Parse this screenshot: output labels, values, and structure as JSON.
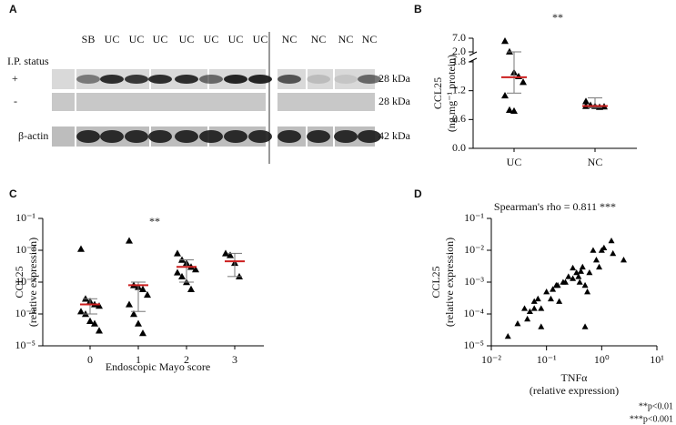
{
  "blot": {
    "panel": "A",
    "lanes": [
      "SB",
      "UC",
      "UC",
      "UC",
      "UC",
      "UC",
      "UC",
      "UC",
      "NC",
      "NC",
      "NC",
      "NC"
    ],
    "row_title": "I.P. status",
    "rows": [
      "+",
      "-",
      "β-actin"
    ],
    "sizes": [
      "28 kDa",
      "28 kDa",
      "42 kDa"
    ]
  },
  "chart_data": [
    {
      "type": "dot",
      "panel": "B",
      "title": "**",
      "y_label": [
        "CCL25",
        "(ng mg⁻¹ protein)"
      ],
      "categories": [
        "UC",
        "NC"
      ],
      "points": [
        [
          6.0,
          2.1,
          1.58,
          1.5,
          1.38,
          1.1,
          0.8,
          0.78
        ],
        [
          0.98,
          0.9,
          0.88,
          0.86,
          0.87,
          0.88
        ]
      ],
      "medians": [
        1.48,
        0.88
      ],
      "error_high": [
        2.0,
        1.05
      ],
      "error_low": [
        1.15,
        0.85
      ],
      "ylim": [
        0,
        1.8
      ],
      "yticks": [
        {
          "value": 0,
          "label": "0.0"
        },
        0.6,
        1.2,
        1.8
      ],
      "ylim_upper": [
        2.0,
        7.0
      ],
      "yticks_upper": [
        {
          "value": 2.0,
          "label": "2.0"
        },
        {
          "value": 7.0,
          "label": "7.0"
        }
      ],
      "color": "#000000",
      "median_color": "#cc1f1f",
      "error_color": "#777777"
    },
    {
      "type": "dot",
      "panel": "C",
      "title": "**",
      "y_label": [
        "CCL25",
        "(relative expression)"
      ],
      "x_label": "Endoscopic Mayo score",
      "categories": [
        "0",
        "1",
        "2",
        "3"
      ],
      "log_y": true,
      "points": [
        [
          0.011,
          0.0003,
          0.00025,
          0.0002,
          0.00018,
          0.00012,
          0.0001,
          6e-05,
          5e-05,
          3e-05
        ],
        [
          0.02,
          0.0008,
          0.0007,
          0.0006,
          0.0004,
          0.0002,
          0.0001,
          5e-05,
          2.5e-05
        ],
        [
          0.008,
          0.005,
          0.004,
          0.003,
          0.0025,
          0.002,
          0.0015,
          0.001,
          0.0006
        ],
        [
          0.008,
          0.007,
          0.004,
          0.0015
        ]
      ],
      "medians": [
        0.0002,
        0.0008,
        0.003,
        0.0045
      ],
      "error_high": [
        0.0003,
        0.001,
        0.005,
        0.008
      ],
      "error_low": [
        0.0001,
        0.00012,
        0.001,
        0.0015
      ],
      "ylim": [
        1e-05,
        0.1
      ],
      "yticks": [
        {
          "value": 1e-05,
          "label": "10⁻⁵"
        },
        {
          "value": 0.0001,
          "label": "10⁻⁴"
        },
        {
          "value": 0.001,
          "label": "10⁻³"
        },
        {
          "value": 0.01,
          "label": "10⁻²"
        },
        {
          "value": 0.1,
          "label": "10⁻¹"
        }
      ],
      "color": "#000000",
      "median_color": "#cc1f1f",
      "error_color": "#777777"
    },
    {
      "type": "scatter",
      "panel": "D",
      "title": "Spearman's rho = 0.811 ***",
      "y_label": [
        "CCL25",
        "(relative expression)"
      ],
      "x_label": [
        "TNFα",
        "(relative expression)"
      ],
      "log_x": true,
      "log_y": true,
      "x": [
        0.02,
        0.03,
        0.04,
        0.045,
        0.05,
        0.06,
        0.06,
        0.07,
        0.08,
        0.08,
        0.1,
        0.12,
        0.13,
        0.15,
        0.16,
        0.17,
        0.2,
        0.22,
        0.25,
        0.3,
        0.3,
        0.35,
        0.38,
        0.4,
        0.42,
        0.45,
        0.5,
        0.5,
        0.55,
        0.6,
        0.7,
        0.8,
        1.0,
        1.1,
        1.5,
        1.6,
        2.5,
        0.9
      ],
      "y": [
        2e-05,
        5e-05,
        0.00015,
        7e-05,
        0.00012,
        0.00015,
        0.00025,
        0.0003,
        4e-05,
        0.00015,
        0.0005,
        0.0003,
        0.0006,
        0.0008,
        0.0008,
        0.00025,
        0.001,
        0.001,
        0.0015,
        0.0013,
        0.0028,
        0.002,
        0.0015,
        0.001,
        0.0022,
        0.003,
        0.0008,
        4e-05,
        0.0005,
        0.002,
        0.01,
        0.005,
        0.01,
        0.012,
        0.02,
        0.008,
        0.005,
        0.003
      ],
      "xlim": [
        0.01,
        10
      ],
      "xticks": [
        {
          "value": 0.01,
          "label": "10⁻²"
        },
        {
          "value": 0.1,
          "label": "10⁻¹"
        },
        {
          "value": 1,
          "label": "10⁰"
        },
        {
          "value": 10,
          "label": "10¹"
        }
      ],
      "ylim": [
        1e-05,
        0.1
      ],
      "yticks": [
        {
          "value": 1e-05,
          "label": "10⁻⁵"
        },
        {
          "value": 0.0001,
          "label": "10⁻⁴"
        },
        {
          "value": 0.001,
          "label": "10⁻³"
        },
        {
          "value": 0.01,
          "label": "10⁻²"
        },
        {
          "value": 0.1,
          "label": "10⁻¹"
        }
      ],
      "color": "#000000"
    }
  ],
  "footnotes": [
    "**p<0.01",
    "***p<0.001"
  ]
}
